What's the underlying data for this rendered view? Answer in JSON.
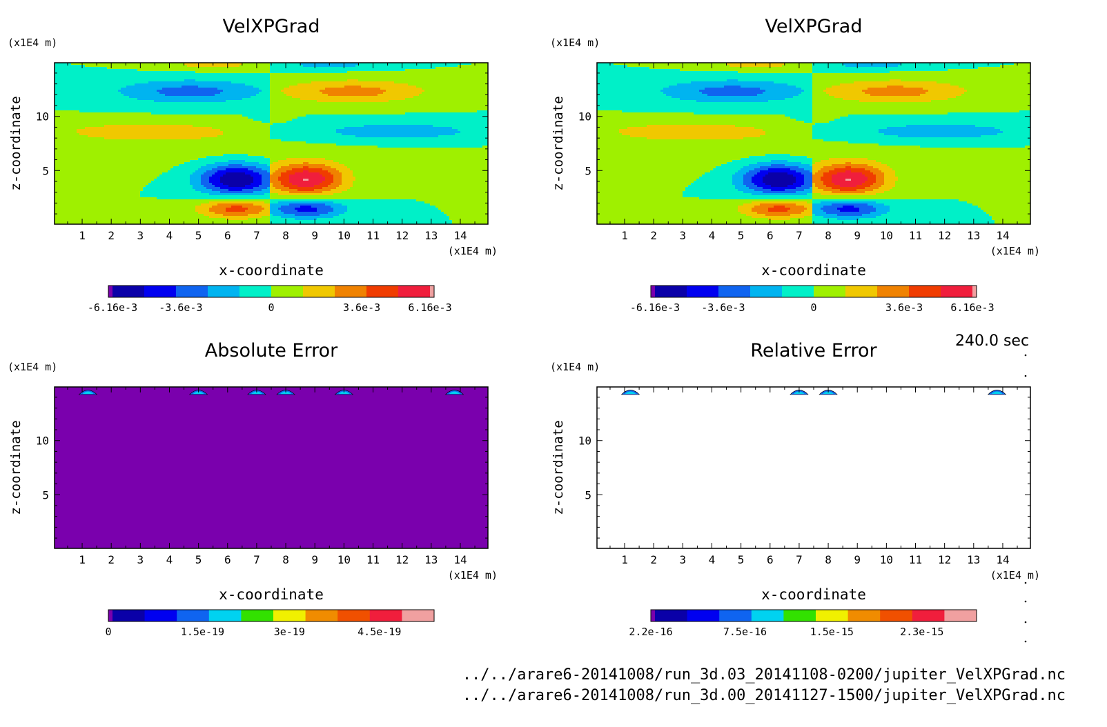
{
  "time_label": "240.0 sec",
  "files": [
    "../../arare6-20141008/run_3d.03_20141108-0200/jupiter_VelXPGrad.nc",
    "../../arare6-20141008/run_3d.00_20141127-1500/jupiter_VelXPGrad.nc"
  ],
  "chart_data": [
    {
      "type": "heatmap",
      "title": "VelXPGrad",
      "xlabel": "x-coordinate",
      "ylabel": "z-coordinate",
      "x_unit": "(x1E4 m)",
      "y_unit": "(x1E4 m)",
      "xlim": [
        0.05,
        14.95
      ],
      "ylim": [
        0.05,
        14.95
      ],
      "xticks": [
        "1",
        "2",
        "3",
        "4",
        "5",
        "6",
        "7",
        "8",
        "9",
        "10",
        "11",
        "12",
        "13",
        "14"
      ],
      "yticks": [
        "5",
        "10"
      ],
      "field": "velxpgrad",
      "colorbar": {
        "colors": [
          "#7a00ad",
          "#0a00a8",
          "#0000f0",
          "#0f64f0",
          "#00b4f0",
          "#00f0c8",
          "#9ff000",
          "#f0c800",
          "#f08200",
          "#f03c00",
          "#f01e3c",
          "#f0a0a0"
        ],
        "tick_labels": [
          "-6.16e-3",
          "-3.6e-3",
          "0",
          "3.6e-3",
          "6.16e-3"
        ]
      }
    },
    {
      "type": "heatmap",
      "title": "VelXPGrad",
      "xlabel": "x-coordinate",
      "ylabel": "z-coordinate",
      "x_unit": "(x1E4 m)",
      "y_unit": "(x1E4 m)",
      "xlim": [
        0.05,
        14.95
      ],
      "ylim": [
        0.05,
        14.95
      ],
      "xticks": [
        "1",
        "2",
        "3",
        "4",
        "5",
        "6",
        "7",
        "8",
        "9",
        "10",
        "11",
        "12",
        "13",
        "14"
      ],
      "yticks": [
        "5",
        "10"
      ],
      "field": "velxpgrad",
      "colorbar": {
        "colors": [
          "#7a00ad",
          "#0a00a8",
          "#0000f0",
          "#0f64f0",
          "#00b4f0",
          "#00f0c8",
          "#9ff000",
          "#f0c800",
          "#f08200",
          "#f03c00",
          "#f01e3c",
          "#f0a0a0"
        ],
        "tick_labels": [
          "-6.16e-3",
          "-3.6e-3",
          "0",
          "3.6e-3",
          "6.16e-3"
        ]
      }
    },
    {
      "type": "heatmap",
      "title": "Absolute Error",
      "xlabel": "x-coordinate",
      "ylabel": "z-coordinate",
      "x_unit": "(x1E4 m)",
      "y_unit": "(x1E4 m)",
      "xlim": [
        0.05,
        14.95
      ],
      "ylim": [
        0.05,
        14.95
      ],
      "xticks": [
        "1",
        "2",
        "3",
        "4",
        "5",
        "6",
        "7",
        "8",
        "9",
        "10",
        "11",
        "12",
        "13",
        "14"
      ],
      "yticks": [
        "5",
        "10"
      ],
      "field": "abs_error",
      "spots_x": [
        1.2,
        5.0,
        7.0,
        8.0,
        10.0,
        13.8
      ],
      "colorbar": {
        "colors": [
          "#7a00ad",
          "#0a00a8",
          "#0000f0",
          "#0f64f0",
          "#00d2f0",
          "#32e100",
          "#f0f000",
          "#f08c00",
          "#f05000",
          "#f01e3c",
          "#f0a0a0"
        ],
        "tick_labels": [
          "0",
          "1.5e-19",
          "3e-19",
          "4.5e-19"
        ]
      }
    },
    {
      "type": "heatmap",
      "title": "Relative Error",
      "xlabel": "x-coordinate",
      "ylabel": "z-coordinate",
      "x_unit": "(x1E4 m)",
      "y_unit": "(x1E4 m)",
      "xlim": [
        0.05,
        14.95
      ],
      "ylim": [
        0.05,
        14.95
      ],
      "xticks": [
        "1",
        "2",
        "3",
        "4",
        "5",
        "6",
        "7",
        "8",
        "9",
        "10",
        "11",
        "12",
        "13",
        "14"
      ],
      "yticks": [
        "5",
        "10"
      ],
      "field": "rel_error",
      "spots_x": [
        1.2,
        7.0,
        8.0,
        13.8
      ],
      "colorbar": {
        "colors": [
          "#7a00ad",
          "#0a00a8",
          "#0000f0",
          "#0f64f0",
          "#00d2f0",
          "#32e100",
          "#f0f000",
          "#f08c00",
          "#f05000",
          "#f01e3c",
          "#f0a0a0"
        ],
        "tick_labels": [
          "2.2e-16",
          "7.5e-16",
          "1.5e-15",
          "2.3e-15"
        ]
      }
    }
  ]
}
